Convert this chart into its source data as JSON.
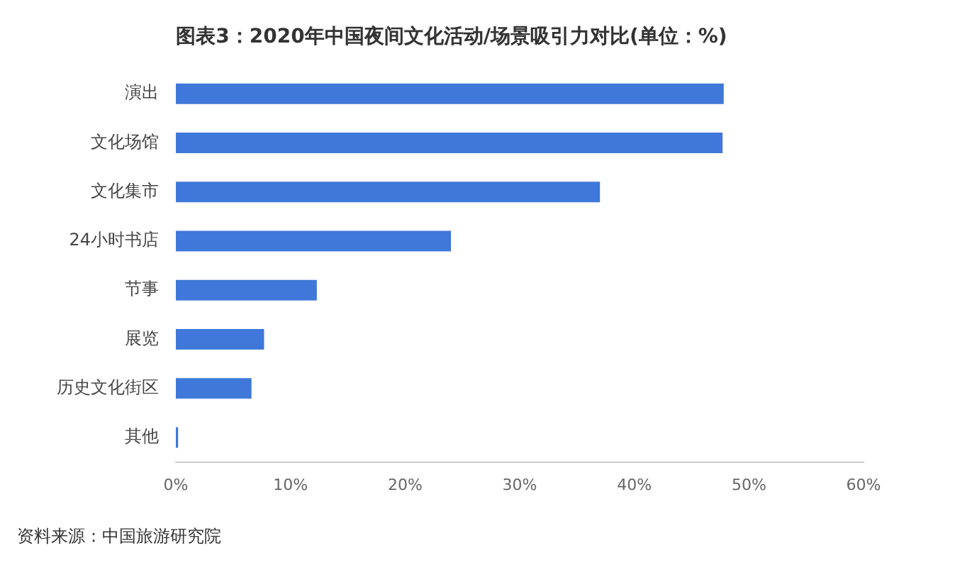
{
  "chart_data": {
    "type": "bar",
    "orientation": "horizontal",
    "title": "图表3：2020年中国夜间文化活动/场景吸引力对比(单位：%)",
    "categories": [
      "演出",
      "文化场馆",
      "文化集市",
      "24小时书店",
      "节事",
      "展览",
      "历史文化街区",
      "其他"
    ],
    "values": [
      47.8,
      47.7,
      37.0,
      24.0,
      12.3,
      7.7,
      6.6,
      0.2
    ],
    "color": "#3f78d8",
    "xlim": [
      0,
      60
    ],
    "xticks": [
      {
        "value": 0,
        "label": "0%"
      },
      {
        "value": 10,
        "label": "10%"
      },
      {
        "value": 20,
        "label": "20%"
      },
      {
        "value": 30,
        "label": "30%"
      },
      {
        "value": 40,
        "label": "40%"
      },
      {
        "value": 50,
        "label": "50%"
      },
      {
        "value": 60,
        "label": "60%"
      }
    ],
    "grid": false,
    "legend": false,
    "annotations": [
      "资料来源：中国旅游研究院"
    ]
  }
}
